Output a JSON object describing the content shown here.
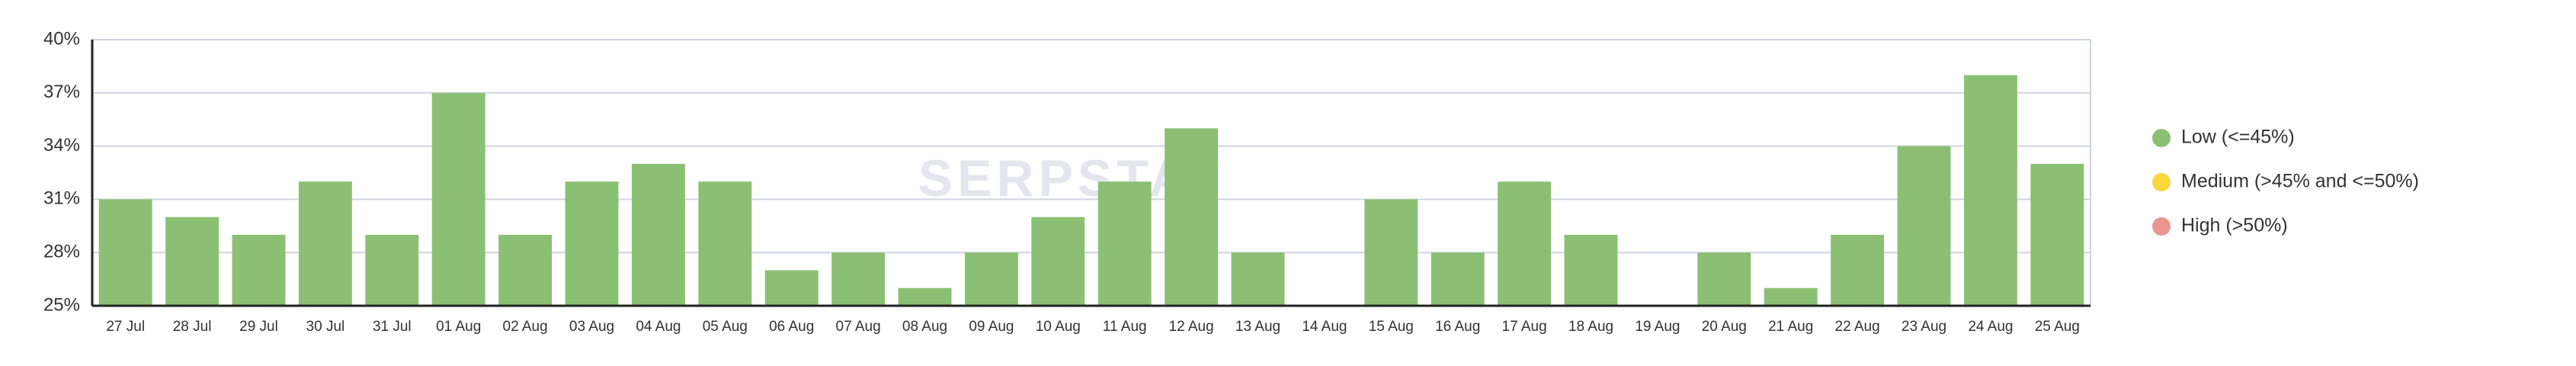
{
  "chart_data": {
    "type": "bar",
    "watermark": "SERPSTAT",
    "categories": [
      "27 Jul",
      "28 Jul",
      "29 Jul",
      "30 Jul",
      "31 Jul",
      "01 Aug",
      "02 Aug",
      "03 Aug",
      "04 Aug",
      "05 Aug",
      "06 Aug",
      "07 Aug",
      "08 Aug",
      "09 Aug",
      "10 Aug",
      "11 Aug",
      "12 Aug",
      "13 Aug",
      "14 Aug",
      "15 Aug",
      "16 Aug",
      "17 Aug",
      "18 Aug",
      "19 Aug",
      "20 Aug",
      "21 Aug",
      "22 Aug",
      "23 Aug",
      "24 Aug",
      "25 Aug"
    ],
    "values": [
      31,
      30,
      29,
      32,
      29,
      37,
      29,
      32,
      33,
      32,
      27,
      28,
      26,
      28,
      30,
      32,
      35,
      28,
      null,
      31,
      28,
      32,
      29,
      null,
      28,
      26,
      29,
      34,
      38,
      33
    ],
    "color": "#8bc074",
    "ylim": [
      25,
      40
    ],
    "yticks": [
      {
        "value": 25,
        "label": "25%"
      },
      {
        "value": 28,
        "label": "28%"
      },
      {
        "value": 31,
        "label": "31%"
      },
      {
        "value": 34,
        "label": "34%"
      },
      {
        "value": 37,
        "label": "37%"
      },
      {
        "value": 40,
        "label": "40%"
      }
    ],
    "grid": true,
    "legend": [
      {
        "name": "Low (<=45%)",
        "color": "#8bc074"
      },
      {
        "name": "Medium (>45% and <=50%)",
        "color": "#f7d73c"
      },
      {
        "name": "High (>50%)",
        "color": "#ea9590"
      }
    ]
  }
}
